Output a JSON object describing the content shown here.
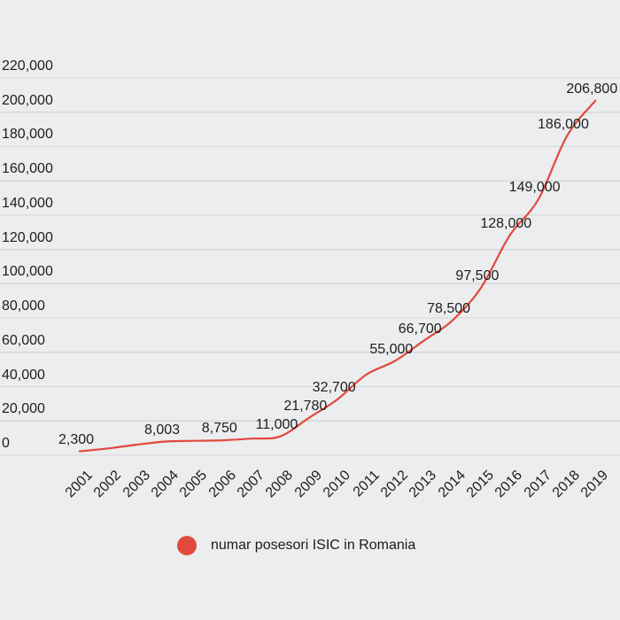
{
  "legend": {
    "label": "numar posesori ISIC in Romania",
    "marker_color": "#e2493d"
  },
  "colors": {
    "background": "#ebedee",
    "gridline": "#d5d8d9",
    "text": "#1d1d1d",
    "line": "#e2493d"
  },
  "chart_data": {
    "type": "line",
    "title": "",
    "xlabel": "",
    "ylabel": "",
    "categories": [
      "2001",
      "2002",
      "2003",
      "2004",
      "2005",
      "2006",
      "2007",
      "2008",
      "2009",
      "2010",
      "2011",
      "2012",
      "2013",
      "2014",
      "2015",
      "2016",
      "2017",
      "2018",
      "2019"
    ],
    "series": [
      {
        "name": "numar posesori ISIC in Romania",
        "color": "#e2493d",
        "values": [
          2300,
          4000,
          6200,
          8003,
          8400,
          8750,
          9700,
          11000,
          21780,
          32700,
          47000,
          55000,
          66700,
          78500,
          97500,
          128000,
          149000,
          186000,
          206800
        ]
      }
    ],
    "data_labels": [
      "2,300",
      "",
      "",
      "8,003",
      "",
      "8,750",
      "",
      "11,000",
      "21,780",
      "32,700",
      "",
      "55,000",
      "66,700",
      "78,500",
      "97,500",
      "128,000",
      "149,000",
      "186,000",
      "206,800"
    ],
    "y_ticks": [
      "0",
      "20,000",
      "40,000",
      "60,000",
      "80,000",
      "100,000",
      "120,000",
      "140,000",
      "160,000",
      "180,000",
      "200,000",
      "220,000"
    ],
    "y_tick_step": 20000,
    "ylim": [
      0,
      220000
    ],
    "grid": true,
    "legend_position": "bottom"
  }
}
